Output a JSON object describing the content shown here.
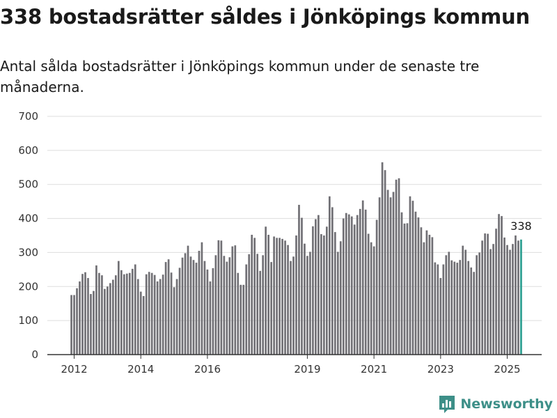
{
  "header": {
    "title": "338 bostadsrätter såldes i Jönköpings kommun",
    "subtitle": "Antal sålda bostadsrätter i Jönköpings kommun under de senaste tre månaderna."
  },
  "brand": {
    "name": "Newsworthy",
    "icon": "newsworthy-logo-icon",
    "color": "#3d8f88"
  },
  "colors": {
    "bar": "#717075",
    "highlight": "#2a9d8f",
    "grid": "#dddddd",
    "axis": "#333333"
  },
  "chart_data": {
    "type": "bar",
    "title": "338 bostadsrätter såldes i Jönköpings kommun",
    "subtitle": "Antal sålda bostadsrätter i Jönköpings kommun under de senaste tre månaderna.",
    "xlabel": "",
    "ylabel": "",
    "ylim": [
      0,
      700
    ],
    "yticks": [
      0,
      100,
      200,
      300,
      400,
      500,
      600,
      700
    ],
    "grid": true,
    "xtick_labels": [
      {
        "label": "2012",
        "index": 1
      },
      {
        "label": "2014",
        "index": 25
      },
      {
        "label": "2016",
        "index": 49
      },
      {
        "label": "2019",
        "index": 85
      },
      {
        "label": "2021",
        "index": 109
      },
      {
        "label": "2023",
        "index": 133
      },
      {
        "label": "2025",
        "index": 157
      }
    ],
    "last_value_label": "338",
    "highlight_last": true,
    "values": [
      175,
      175,
      195,
      215,
      237,
      242,
      225,
      178,
      187,
      262,
      240,
      233,
      193,
      200,
      210,
      220,
      233,
      275,
      248,
      236,
      238,
      240,
      252,
      265,
      222,
      185,
      172,
      236,
      243,
      240,
      234,
      215,
      222,
      235,
      272,
      280,
      241,
      198,
      222,
      255,
      285,
      298,
      320,
      288,
      278,
      270,
      305,
      330,
      275,
      250,
      215,
      254,
      292,
      336,
      335,
      290,
      273,
      286,
      318,
      321,
      240,
      205,
      205,
      265,
      295,
      352,
      343,
      296,
      246,
      292,
      376,
      352,
      272,
      347,
      343,
      343,
      340,
      335,
      322,
      275,
      288,
      350,
      440,
      402,
      326,
      290,
      302,
      377,
      398,
      410,
      354,
      350,
      376,
      465,
      433,
      360,
      302,
      333,
      400,
      416,
      412,
      406,
      382,
      410,
      428,
      453,
      426,
      355,
      330,
      318,
      396,
      462,
      565,
      542,
      484,
      462,
      478,
      514,
      518,
      418,
      385,
      386,
      465,
      452,
      420,
      403,
      374,
      330,
      365,
      352,
      345,
      271,
      265,
      225,
      265,
      292,
      302,
      277,
      273,
      270,
      278,
      320,
      308,
      275,
      256,
      243,
      292,
      300,
      335,
      356,
      355,
      310,
      325,
      370,
      413,
      407,
      344,
      322,
      308,
      325,
      350,
      335,
      338
    ]
  }
}
